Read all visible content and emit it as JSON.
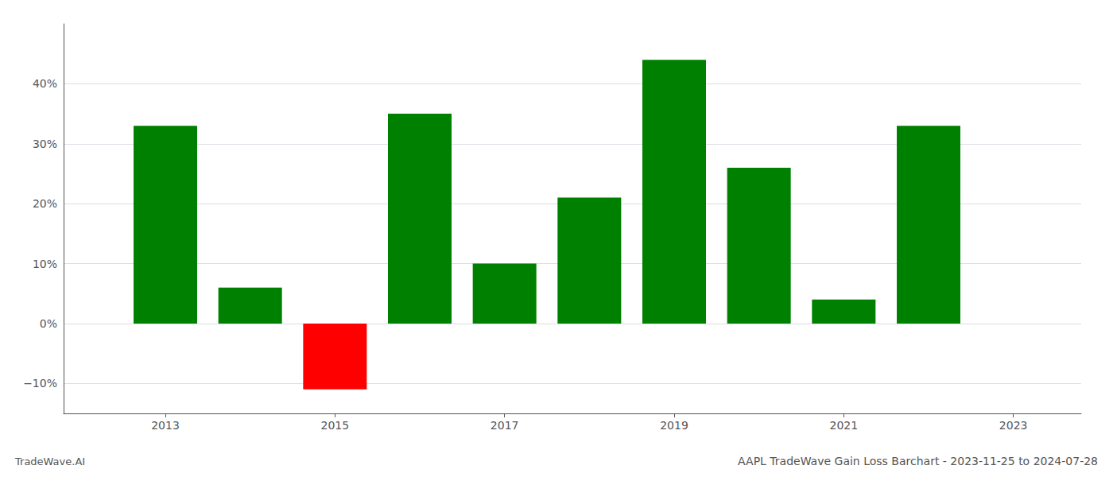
{
  "chart_data": {
    "type": "bar",
    "title": "AAPL TradeWave Gain Loss Barchart - 2023-11-25 to 2024-07-28",
    "annotations": [
      "TradeWave.AI"
    ],
    "x": [
      2013,
      2014,
      2015,
      2016,
      2017,
      2018,
      2019,
      2020,
      2021,
      2022
    ],
    "values": [
      33.0,
      6.0,
      -11.0,
      35.0,
      10.0,
      21.0,
      44.0,
      26.0,
      4.0,
      33.0
    ],
    "colors": [
      "#008000",
      "#008000",
      "#ff0000",
      "#008000",
      "#008000",
      "#008000",
      "#008000",
      "#008000",
      "#008000",
      "#008000"
    ],
    "xlim": [
      2011.8,
      2023.8
    ],
    "xticks": [
      2013,
      2015,
      2017,
      2019,
      2021,
      2023
    ],
    "ylim": [
      -15,
      50
    ],
    "yticks": [
      {
        "value": -10,
        "label": "−10%"
      },
      {
        "value": 0,
        "label": "0%"
      },
      {
        "value": 10,
        "label": "10%"
      },
      {
        "value": 20,
        "label": "20%"
      },
      {
        "value": 30,
        "label": "30%"
      },
      {
        "value": 40,
        "label": "40%"
      }
    ],
    "grid": true
  }
}
